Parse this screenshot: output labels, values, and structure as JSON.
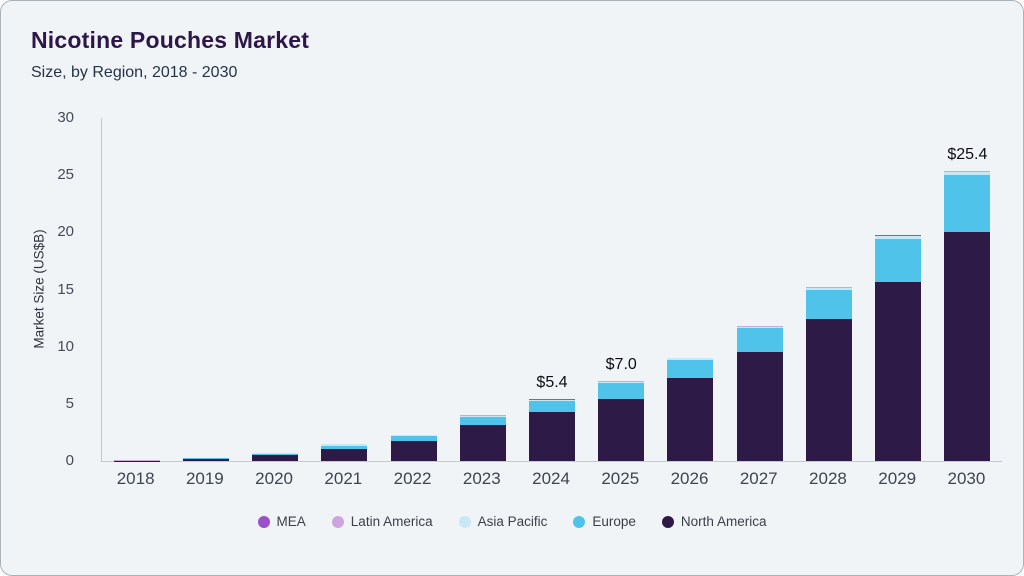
{
  "header": {
    "title": "Nicotine Pouches Market",
    "subtitle": "Size, by Region, 2018 - 2030"
  },
  "chart_data": {
    "type": "bar",
    "variant": "stacked",
    "title": "Nicotine Pouches Market",
    "subtitle": "Size, by Region, 2018 - 2030",
    "xlabel": "",
    "ylabel": "Market Size (US$B)",
    "ylim": [
      0,
      30
    ],
    "yticks": [
      0,
      5,
      10,
      15,
      20,
      25,
      30
    ],
    "grid": false,
    "legend_position": "bottom",
    "categories": [
      "2018",
      "2019",
      "2020",
      "2021",
      "2022",
      "2023",
      "2024",
      "2025",
      "2026",
      "2027",
      "2028",
      "2029",
      "2030"
    ],
    "series": [
      {
        "name": "MEA",
        "color": "#9b51c9",
        "values": [
          0.002,
          0.01,
          0.01,
          0.02,
          0.01,
          0.01,
          0.02,
          0.03,
          0.01,
          0.02,
          0.02,
          0.05,
          0.04
        ]
      },
      {
        "name": "Latin America",
        "color": "#cda4dd",
        "values": [
          0.003,
          0.01,
          0.02,
          0.03,
          0.01,
          0.02,
          0.03,
          0.04,
          0.02,
          0.03,
          0.03,
          0.05,
          0.06
        ]
      },
      {
        "name": "Asia Pacific",
        "color": "#c7e8f4",
        "values": [
          0.005,
          0.02,
          0.05,
          0.1,
          0.08,
          0.12,
          0.1,
          0.13,
          0.12,
          0.15,
          0.15,
          0.2,
          0.3
        ]
      },
      {
        "name": "Europe",
        "color": "#4fc3ea",
        "values": [
          0.01,
          0.05,
          0.15,
          0.3,
          0.45,
          0.7,
          0.95,
          1.35,
          1.55,
          2.05,
          2.6,
          3.75,
          5.0
        ]
      },
      {
        "name": "North America",
        "color": "#2e1a47",
        "values": [
          0.03,
          0.18,
          0.5,
          1.05,
          1.75,
          3.15,
          4.3,
          5.45,
          7.3,
          9.55,
          12.4,
          15.7,
          20.0
        ]
      }
    ],
    "stack_order_bottom_to_top": [
      "North America",
      "Europe",
      "Asia Pacific",
      "Latin America",
      "MEA"
    ],
    "annotations": [
      {
        "category": "2024",
        "label": "$5.4",
        "value": 5.4
      },
      {
        "category": "2025",
        "label": "$7.0",
        "value": 7.0
      },
      {
        "category": "2030",
        "label": "$25.4",
        "value": 25.4
      }
    ]
  }
}
